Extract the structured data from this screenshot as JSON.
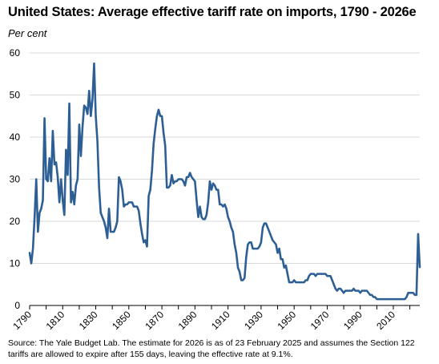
{
  "title": "United States: Average effective tariff rate on imports, 1790 - 2026e",
  "unit_label": "Per cent",
  "source": "Source: The Yale Budget Lab. The estimate for 2026 is as of 23 February 2025 and assumes the Section 122 tariffs are allowed to expire after 155 days, leaving the effective rate at 9.1%.",
  "colors": {
    "line": "#2E5F94",
    "grid": "#D9D9D9",
    "axis": "#000000"
  },
  "chart_data": {
    "type": "line",
    "title": "United States: Average effective tariff rate on imports, 1790 - 2026e",
    "ylabel": "Per cent",
    "xlabel": "",
    "xlim": [
      1790,
      2026
    ],
    "ylim": [
      0,
      60
    ],
    "grid": true,
    "legend": "none",
    "x_ticks": [
      "1790",
      "1810",
      "1830",
      "1850",
      "1870",
      "1890",
      "1910",
      "1930",
      "1950",
      "1970",
      "1990",
      "2010"
    ],
    "y_ticks": [
      "0",
      "10",
      "20",
      "30",
      "40",
      "50",
      "60"
    ],
    "series": [
      {
        "points": [
          [
            1790,
            12.5
          ],
          [
            1791,
            10.0
          ],
          [
            1792,
            13.5
          ],
          [
            1793,
            21.0
          ],
          [
            1794,
            30.0
          ],
          [
            1795,
            17.5
          ],
          [
            1796,
            22.0
          ],
          [
            1797,
            23.0
          ],
          [
            1798,
            25.0
          ],
          [
            1799,
            44.5
          ],
          [
            1800,
            30.0
          ],
          [
            1801,
            29.5
          ],
          [
            1802,
            35.0
          ],
          [
            1803,
            29.5
          ],
          [
            1804,
            41.5
          ],
          [
            1805,
            33.5
          ],
          [
            1806,
            34.0
          ],
          [
            1807,
            30.5
          ],
          [
            1808,
            24.5
          ],
          [
            1809,
            30.0
          ],
          [
            1810,
            25.0
          ],
          [
            1811,
            21.5
          ],
          [
            1812,
            37.0
          ],
          [
            1813,
            31.0
          ],
          [
            1814,
            48.0
          ],
          [
            1815,
            24.5
          ],
          [
            1816,
            27.0
          ],
          [
            1817,
            24.0
          ],
          [
            1818,
            28.5
          ],
          [
            1819,
            30.0
          ],
          [
            1820,
            43.0
          ],
          [
            1821,
            35.5
          ],
          [
            1822,
            42.5
          ],
          [
            1823,
            47.5
          ],
          [
            1824,
            47.0
          ],
          [
            1825,
            45.5
          ],
          [
            1826,
            51.0
          ],
          [
            1827,
            45.0
          ],
          [
            1828,
            49.0
          ],
          [
            1829,
            57.5
          ],
          [
            1830,
            45.0
          ],
          [
            1831,
            39.0
          ],
          [
            1832,
            28.0
          ],
          [
            1833,
            22.0
          ],
          [
            1834,
            21.0
          ],
          [
            1835,
            20.0
          ],
          [
            1836,
            18.5
          ],
          [
            1837,
            16.0
          ],
          [
            1838,
            23.0
          ],
          [
            1839,
            17.5
          ],
          [
            1840,
            17.5
          ],
          [
            1841,
            17.5
          ],
          [
            1842,
            18.5
          ],
          [
            1843,
            20.0
          ],
          [
            1844,
            30.5
          ],
          [
            1845,
            29.5
          ],
          [
            1846,
            27.5
          ],
          [
            1847,
            23.5
          ],
          [
            1848,
            24.0
          ],
          [
            1849,
            24.0
          ],
          [
            1850,
            24.5
          ],
          [
            1851,
            24.5
          ],
          [
            1852,
            24.5
          ],
          [
            1853,
            23.5
          ],
          [
            1854,
            23.5
          ],
          [
            1855,
            23.5
          ],
          [
            1856,
            22.5
          ],
          [
            1857,
            19.5
          ],
          [
            1858,
            17.0
          ],
          [
            1859,
            15.0
          ],
          [
            1860,
            15.5
          ],
          [
            1861,
            14.0
          ],
          [
            1862,
            26.0
          ],
          [
            1863,
            27.5
          ],
          [
            1864,
            32.0
          ],
          [
            1865,
            38.5
          ],
          [
            1866,
            42.0
          ],
          [
            1867,
            45.0
          ],
          [
            1868,
            46.5
          ],
          [
            1869,
            45.0
          ],
          [
            1870,
            45.0
          ],
          [
            1871,
            41.0
          ],
          [
            1872,
            38.0
          ],
          [
            1873,
            28.0
          ],
          [
            1874,
            28.0
          ],
          [
            1875,
            28.5
          ],
          [
            1876,
            31.0
          ],
          [
            1877,
            29.0
          ],
          [
            1878,
            29.5
          ],
          [
            1879,
            29.5
          ],
          [
            1880,
            30.0
          ],
          [
            1881,
            30.0
          ],
          [
            1882,
            30.0
          ],
          [
            1883,
            29.5
          ],
          [
            1884,
            28.5
          ],
          [
            1885,
            30.5
          ],
          [
            1886,
            30.5
          ],
          [
            1887,
            31.5
          ],
          [
            1888,
            30.5
          ],
          [
            1889,
            30.0
          ],
          [
            1890,
            29.5
          ],
          [
            1891,
            25.0
          ],
          [
            1892,
            21.0
          ],
          [
            1893,
            23.5
          ],
          [
            1894,
            21.0
          ],
          [
            1895,
            20.5
          ],
          [
            1896,
            20.5
          ],
          [
            1897,
            21.5
          ],
          [
            1898,
            24.5
          ],
          [
            1899,
            29.5
          ],
          [
            1900,
            27.5
          ],
          [
            1901,
            29.0
          ],
          [
            1902,
            28.5
          ],
          [
            1903,
            27.5
          ],
          [
            1904,
            27.5
          ],
          [
            1905,
            24.0
          ],
          [
            1906,
            24.0
          ],
          [
            1907,
            23.5
          ],
          [
            1908,
            24.0
          ],
          [
            1909,
            23.0
          ],
          [
            1910,
            21.0
          ],
          [
            1911,
            20.0
          ],
          [
            1912,
            18.5
          ],
          [
            1913,
            17.5
          ],
          [
            1914,
            14.5
          ],
          [
            1915,
            12.5
          ],
          [
            1916,
            9.0
          ],
          [
            1917,
            8.0
          ],
          [
            1918,
            6.0
          ],
          [
            1919,
            6.0
          ],
          [
            1920,
            6.5
          ],
          [
            1921,
            11.5
          ],
          [
            1922,
            14.5
          ],
          [
            1923,
            15.0
          ],
          [
            1924,
            15.0
          ],
          [
            1925,
            13.5
          ],
          [
            1926,
            13.5
          ],
          [
            1927,
            13.5
          ],
          [
            1928,
            13.5
          ],
          [
            1929,
            14.0
          ],
          [
            1930,
            15.0
          ],
          [
            1931,
            18.5
          ],
          [
            1932,
            19.5
          ],
          [
            1933,
            19.5
          ],
          [
            1934,
            18.5
          ],
          [
            1935,
            17.5
          ],
          [
            1936,
            16.5
          ],
          [
            1937,
            15.5
          ],
          [
            1938,
            15.0
          ],
          [
            1939,
            14.5
          ],
          [
            1940,
            12.5
          ],
          [
            1941,
            13.5
          ],
          [
            1942,
            11.0
          ],
          [
            1943,
            11.0
          ],
          [
            1944,
            9.0
          ],
          [
            1945,
            9.5
          ],
          [
            1946,
            7.5
          ],
          [
            1947,
            5.5
          ],
          [
            1948,
            5.5
          ],
          [
            1949,
            5.5
          ],
          [
            1950,
            6.0
          ],
          [
            1951,
            5.5
          ],
          [
            1952,
            5.5
          ],
          [
            1953,
            5.5
          ],
          [
            1954,
            5.5
          ],
          [
            1955,
            5.5
          ],
          [
            1956,
            5.5
          ],
          [
            1957,
            6.0
          ],
          [
            1958,
            6.0
          ],
          [
            1959,
            7.0
          ],
          [
            1960,
            7.5
          ],
          [
            1961,
            7.5
          ],
          [
            1962,
            7.5
          ],
          [
            1963,
            7.0
          ],
          [
            1964,
            7.5
          ],
          [
            1965,
            7.5
          ],
          [
            1966,
            7.5
          ],
          [
            1967,
            7.5
          ],
          [
            1968,
            7.5
          ],
          [
            1969,
            7.5
          ],
          [
            1970,
            7.0
          ],
          [
            1971,
            7.0
          ],
          [
            1972,
            7.0
          ],
          [
            1973,
            6.0
          ],
          [
            1974,
            5.0
          ],
          [
            1975,
            4.0
          ],
          [
            1976,
            3.5
          ],
          [
            1977,
            4.0
          ],
          [
            1978,
            4.0
          ],
          [
            1979,
            3.5
          ],
          [
            1980,
            3.0
          ],
          [
            1981,
            3.5
          ],
          [
            1982,
            3.5
          ],
          [
            1983,
            3.5
          ],
          [
            1984,
            3.5
          ],
          [
            1985,
            3.5
          ],
          [
            1986,
            4.0
          ],
          [
            1987,
            3.5
          ],
          [
            1988,
            3.5
          ],
          [
            1989,
            3.5
          ],
          [
            1990,
            3.0
          ],
          [
            1991,
            3.5
          ],
          [
            1992,
            3.5
          ],
          [
            1993,
            3.5
          ],
          [
            1994,
            3.5
          ],
          [
            1995,
            3.0
          ],
          [
            1996,
            2.5
          ],
          [
            1997,
            2.5
          ],
          [
            1998,
            2.0
          ],
          [
            1999,
            2.0
          ],
          [
            2000,
            1.5
          ],
          [
            2001,
            1.5
          ],
          [
            2002,
            1.5
          ],
          [
            2003,
            1.5
          ],
          [
            2004,
            1.5
          ],
          [
            2005,
            1.5
          ],
          [
            2006,
            1.5
          ],
          [
            2007,
            1.5
          ],
          [
            2008,
            1.5
          ],
          [
            2009,
            1.5
          ],
          [
            2010,
            1.5
          ],
          [
            2011,
            1.5
          ],
          [
            2012,
            1.5
          ],
          [
            2013,
            1.5
          ],
          [
            2014,
            1.5
          ],
          [
            2015,
            1.5
          ],
          [
            2016,
            1.5
          ],
          [
            2017,
            1.5
          ],
          [
            2018,
            2.0
          ],
          [
            2019,
            3.0
          ],
          [
            2020,
            3.0
          ],
          [
            2021,
            3.0
          ],
          [
            2022,
            3.0
          ],
          [
            2023,
            2.5
          ],
          [
            2024,
            2.5
          ],
          [
            2025,
            17.0
          ],
          [
            2026,
            9.1
          ]
        ]
      }
    ]
  }
}
